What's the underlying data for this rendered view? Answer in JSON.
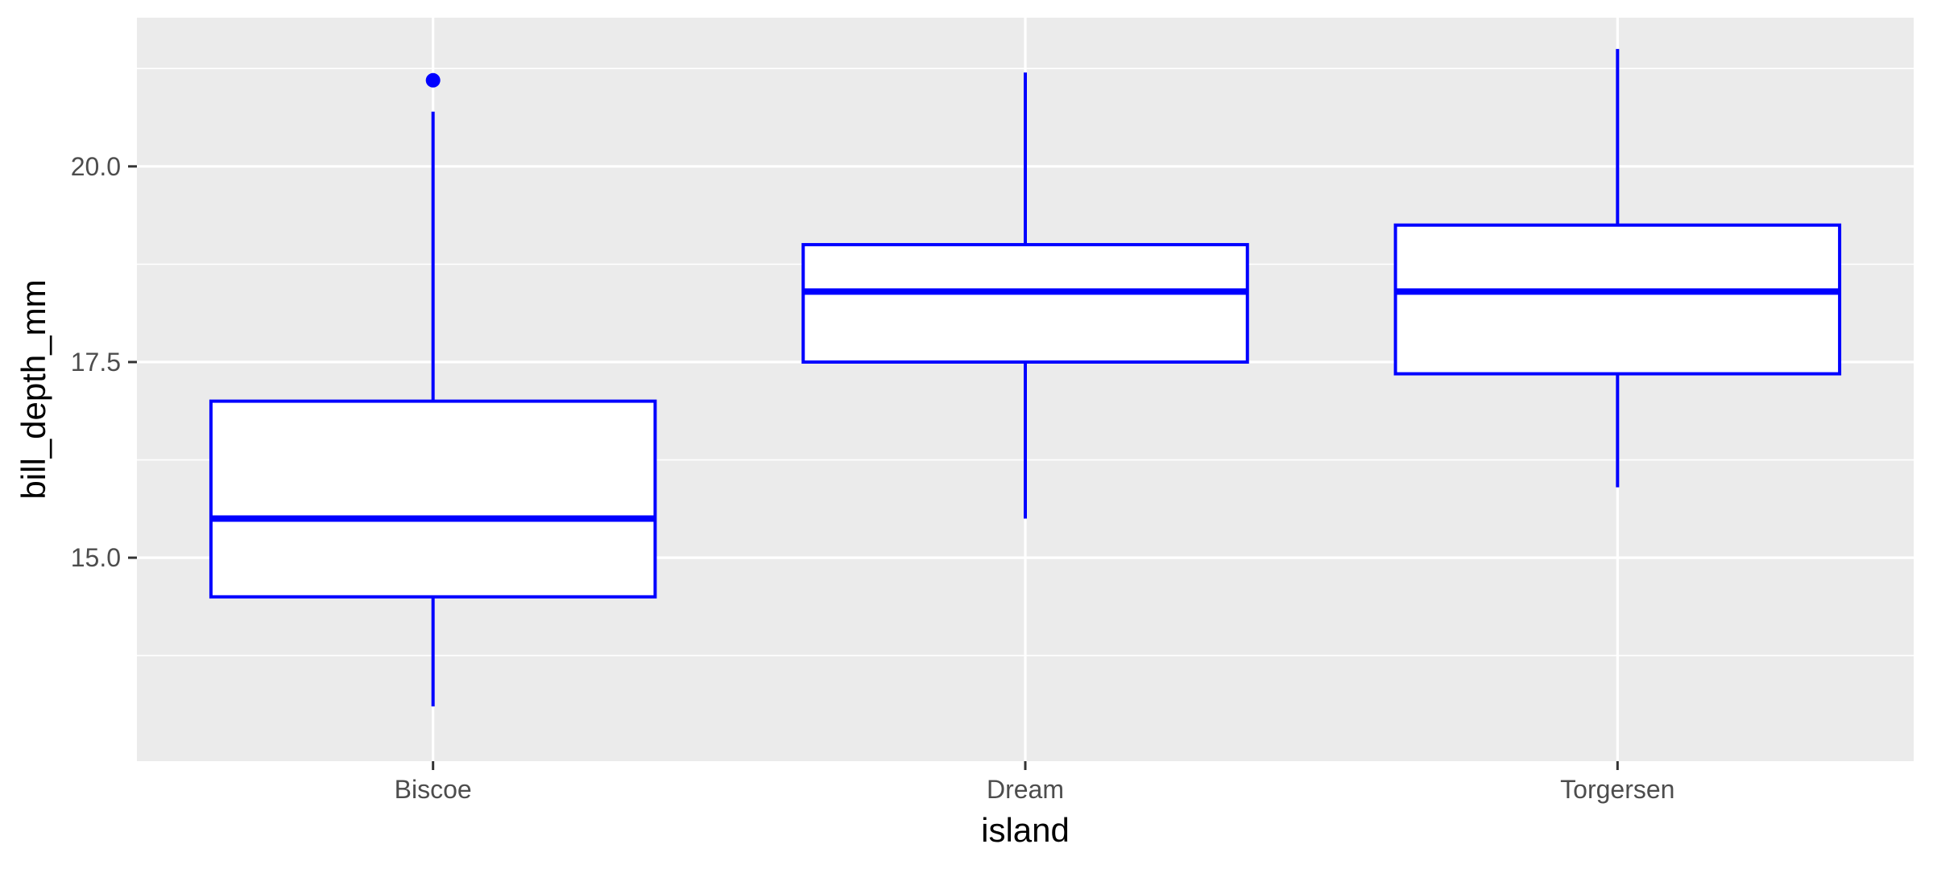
{
  "chart_data": {
    "type": "boxplot",
    "xlabel": "island",
    "ylabel": "bill_depth_mm",
    "categories": [
      "Biscoe",
      "Dream",
      "Torgersen"
    ],
    "y_ticks": [
      15.0,
      17.5,
      20.0
    ],
    "y_tick_labels": [
      "15.0",
      "17.5",
      "20.0"
    ],
    "ylim": [
      12.4,
      21.9
    ],
    "grid": true,
    "boxes": [
      {
        "category": "Biscoe",
        "whisker_low": 13.1,
        "q1": 14.5,
        "median": 15.5,
        "q3": 17.0,
        "whisker_high": 20.7,
        "outliers": [
          21.1
        ]
      },
      {
        "category": "Dream",
        "whisker_low": 15.5,
        "q1": 17.5,
        "median": 18.4,
        "q3": 19.0,
        "whisker_high": 21.2,
        "outliers": []
      },
      {
        "category": "Torgersen",
        "whisker_low": 15.9,
        "q1": 17.35,
        "median": 18.4,
        "q3": 19.25,
        "whisker_high": 21.5,
        "outliers": []
      }
    ]
  },
  "colors": {
    "panel_background": "#ebebeb",
    "grid_line": "#ffffff",
    "box_stroke": "#0000ff",
    "box_fill": "#ffffff",
    "tick_text": "#4d4d4d",
    "tick_mark": "#333333",
    "axis_title": "#000000"
  }
}
